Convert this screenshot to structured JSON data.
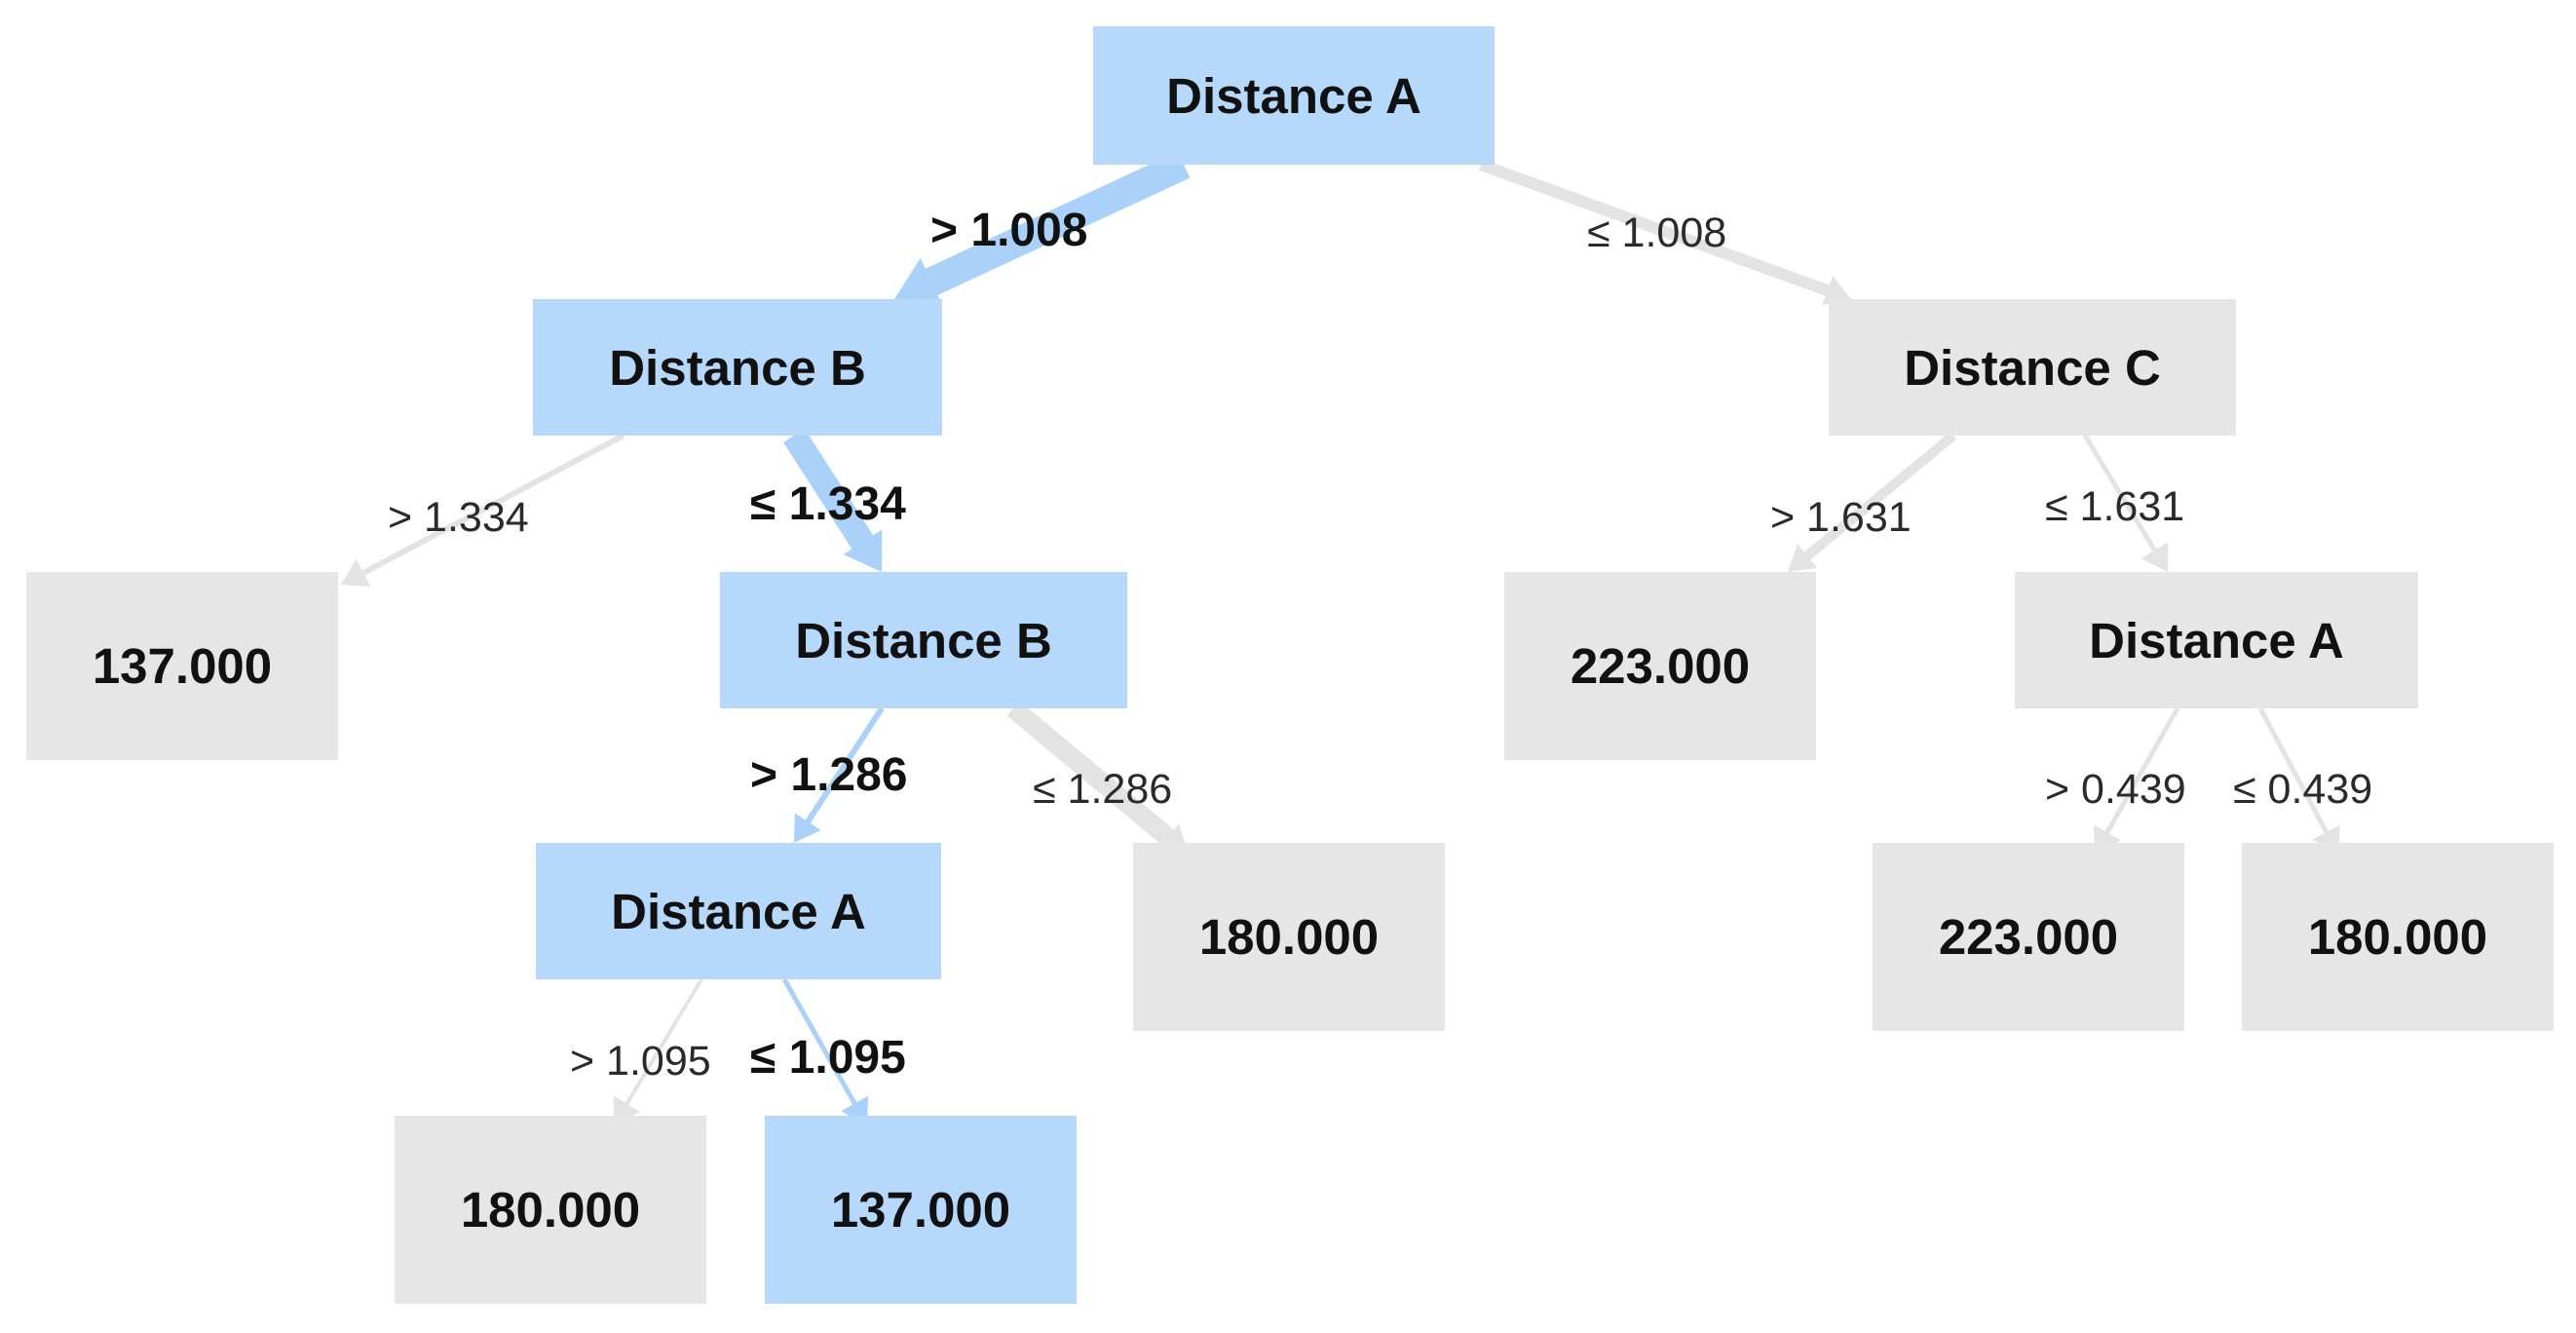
{
  "colors": {
    "active_node": "#b5d8fb",
    "inactive_node": "#e6e6e6",
    "active_edge": "#a9d1fa",
    "inactive_edge": "#e3e3e3"
  },
  "tree": {
    "root": {
      "label": "Distance A",
      "left": {
        "edge": "> 1.008",
        "label": "Distance B",
        "left": {
          "edge": "> 1.334",
          "label": "137.000"
        },
        "right": {
          "edge": "≤ 1.334",
          "label": "Distance B",
          "left": {
            "edge": "> 1.286",
            "label": "Distance A",
            "left": {
              "edge": "> 1.095",
              "label": "180.000"
            },
            "right": {
              "edge": "≤ 1.095",
              "label": "137.000"
            }
          },
          "right": {
            "edge": "≤ 1.286",
            "label": "180.000"
          }
        }
      },
      "right": {
        "edge": "≤ 1.008",
        "label": "Distance C",
        "left": {
          "edge": "> 1.631",
          "label": "223.000"
        },
        "right": {
          "edge": "≤ 1.631",
          "label": "Distance A",
          "left": {
            "edge": "> 0.439",
            "label": "223.000"
          },
          "right": {
            "edge": "≤ 0.439",
            "label": "180.000"
          }
        }
      }
    }
  }
}
